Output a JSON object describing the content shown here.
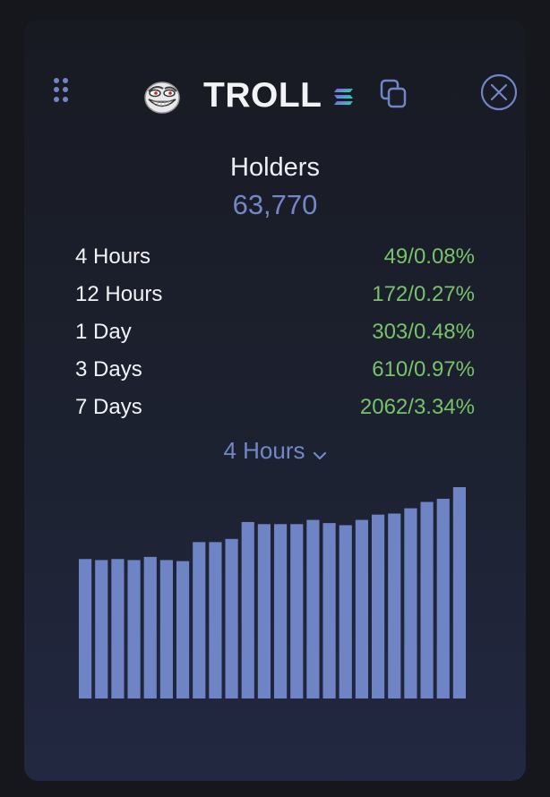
{
  "token": {
    "name": "TROLL",
    "logo_icon": "troll-face-icon",
    "chain_icon": "solana-icon",
    "copy_icon": "copy-icon",
    "close_icon": "close-circle-icon",
    "drag_icon": "drag-handle-icon"
  },
  "holders": {
    "title": "Holders",
    "count": "63,770"
  },
  "stats": [
    {
      "label": "4 Hours",
      "count": "49",
      "sep": "/",
      "pct": "0.08%"
    },
    {
      "label": "12 Hours",
      "count": "172",
      "sep": "/",
      "pct": "0.27%"
    },
    {
      "label": "1 Day",
      "count": "303",
      "sep": "/",
      "pct": "0.48%"
    },
    {
      "label": "3 Days",
      "count": "610",
      "sep": "/",
      "pct": "0.97%"
    },
    {
      "label": "7 Days",
      "count": "2062",
      "sep": "/",
      "pct": "3.34%"
    }
  ],
  "range_select": {
    "selected": "4 Hours",
    "icon": "chevron-down-icon"
  },
  "colors": {
    "accent": "#7187c6",
    "positive": "#77c26a",
    "bar": "#6e84c4",
    "text": "#f2f3f7"
  },
  "chart_data": {
    "type": "bar",
    "title": "",
    "xlabel": "",
    "ylabel": "",
    "ylim": [
      0,
      100
    ],
    "values": [
      66,
      65.5,
      66,
      65.5,
      67,
      65.5,
      65,
      74,
      74,
      75.5,
      83.5,
      82.5,
      82.5,
      82.5,
      84.5,
      83,
      82,
      84.5,
      87,
      87.5,
      90,
      93,
      94.5,
      100
    ]
  }
}
